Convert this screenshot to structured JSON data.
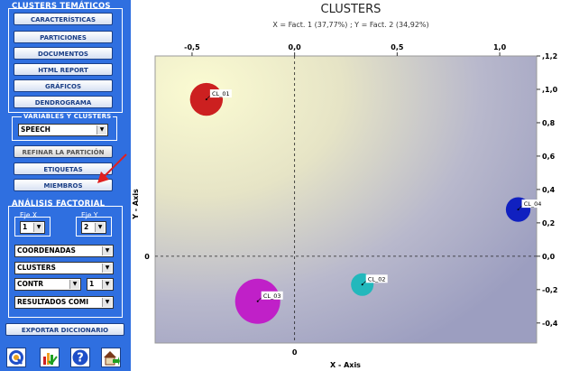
{
  "sidebar": {
    "clusters_title": "CLUSTERS TEMÁTICOS",
    "buttons": [
      "CARACTERÍSTICAS",
      "PARTICIONES",
      "DOCUMENTOS",
      "HTML REPORT",
      "GRÁFICOS",
      "DENDROGRAMA"
    ],
    "variables_title": "VARIABLES Y CLUSTERS",
    "variable_select": "SPEECH",
    "refine_button": "REFINAR LA PARTICIÓN",
    "labels_button": "ETIQUETAS",
    "members_button": "MIEMBROS",
    "factorial_title": "ANÁLISIS FACTORIAL",
    "axis_x_label": "Eje X",
    "axis_x_value": "1",
    "axis_y_label": "Eje Y",
    "axis_y_value": "2",
    "coord_select": "COORDENADAS",
    "clusters_select": "CLUSTERS",
    "contr_select": "CONTR",
    "contr_num_select": "1",
    "results_select": "RESULTADOS COMI",
    "export_button": "EXPORTAR DICCIONARIO",
    "tools": [
      "q-logo-icon",
      "chart-check-icon",
      "help-icon",
      "home-export-icon"
    ],
    "accent": "#2f6fe0",
    "arrow_color": "#e02020"
  },
  "chart_data": {
    "type": "scatter",
    "title": "CLUSTERS",
    "subtitle": "X = Fact. 1 (37,77%) ; Y = Fact. 2 (34,92%)",
    "xlabel": "X - Axis",
    "ylabel": "Y - Axis",
    "xlim": [
      -0.68,
      1.18
    ],
    "ylim": [
      -0.52,
      1.2
    ],
    "x_ticks": [
      -0.5,
      0.0,
      0.5,
      1.0
    ],
    "x_tick_labels": [
      "-0,5",
      "0,0",
      "0,5",
      "1,0"
    ],
    "y_ticks": [
      1.2,
      1.0,
      0.8,
      0.6,
      0.4,
      0.2,
      0.0,
      -0.2,
      -0.4
    ],
    "y_tick_labels": [
      ",1,2",
      ",1,0",
      "0,8",
      "0,6",
      "0,4",
      "0,2",
      "0,0",
      "-0,2",
      "-0,4"
    ],
    "x_zero_label": "0",
    "y_zero_label": "0",
    "points": [
      {
        "label": "CL_01",
        "x": -0.43,
        "y": 0.94,
        "size": 0.16,
        "color": "#cc2020"
      },
      {
        "label": "CL_02",
        "x": 0.33,
        "y": -0.17,
        "size": 0.11,
        "color": "#22b8bc"
      },
      {
        "label": "CL_03",
        "x": -0.18,
        "y": -0.27,
        "size": 0.22,
        "color": "#c020c8"
      },
      {
        "label": "CL_04",
        "x": 1.09,
        "y": 0.28,
        "size": 0.12,
        "color": "#1020c0"
      }
    ]
  }
}
